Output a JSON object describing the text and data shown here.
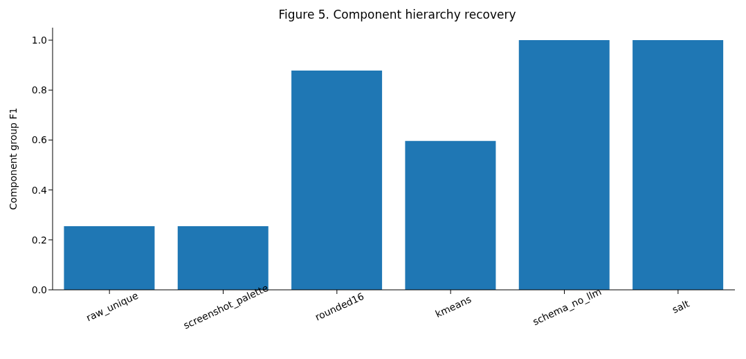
{
  "chart_data": {
    "type": "bar",
    "title": "Figure 5. Component hierarchy recovery",
    "ylabel": "Component group F1",
    "categories": [
      "raw_unique",
      "screenshot_palette",
      "rounded16",
      "kmeans",
      "schema_no_llm",
      "salt"
    ],
    "values": [
      0.255,
      0.255,
      0.878,
      0.596,
      1.0,
      1.0
    ],
    "color": "#1f77b4",
    "ylim": [
      0,
      1.05
    ],
    "yticks": [
      {
        "value": 0,
        "label": "0.0"
      },
      {
        "value": 0.2,
        "label": "0.2"
      },
      {
        "value": 0.4,
        "label": "0.4"
      },
      {
        "value": 0.6,
        "label": "0.6"
      },
      {
        "value": 0.8,
        "label": "0.8"
      },
      {
        "value": 1.0,
        "label": "1.0"
      }
    ],
    "grid": false
  }
}
